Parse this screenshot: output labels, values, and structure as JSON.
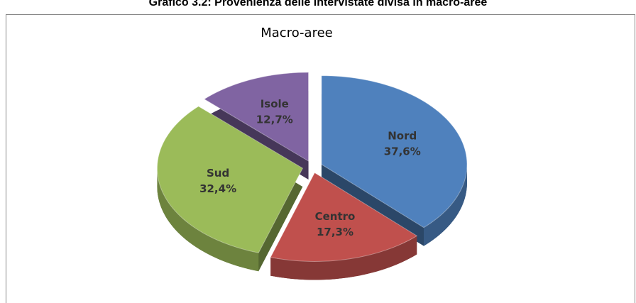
{
  "heading": "Grafico 3.2: Provenienza delle intervistate divisa in macro-aree",
  "chart_data": {
    "type": "pie",
    "title": "Macro-aree",
    "categories": [
      "Nord",
      "Centro",
      "Sud",
      "Isole"
    ],
    "values": [
      37.6,
      17.3,
      32.4,
      12.7
    ],
    "value_labels": [
      "37,6%",
      "17,3%",
      "32,4%",
      "12,7%"
    ],
    "colors": [
      "#4f81bd",
      "#c0504d",
      "#9bbb59",
      "#8064a2"
    ]
  }
}
